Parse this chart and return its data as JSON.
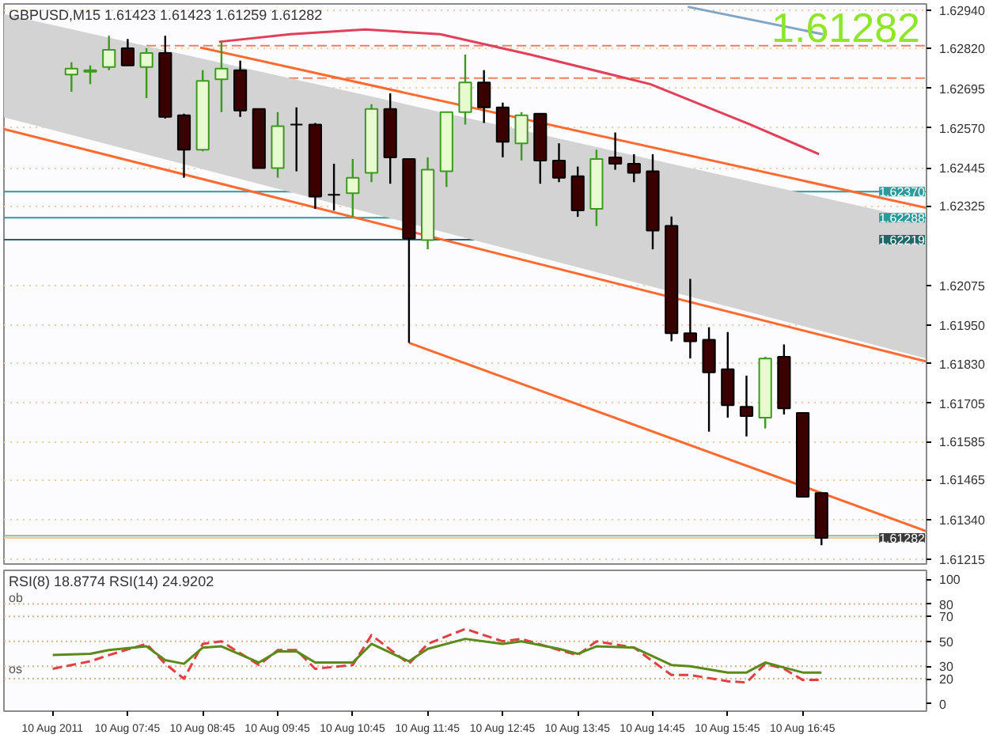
{
  "chart_data": [
    {
      "type": "candlestick",
      "title": "GBPUSD,M15  1.61423 1.61423 1.61259 1.61282",
      "x": [
        "2011-08-10T07:00",
        "2011-08-10T07:15",
        "2011-08-10T07:30",
        "2011-08-10T07:45",
        "2011-08-10T08:00",
        "2011-08-10T08:15",
        "2011-08-10T08:30",
        "2011-08-10T08:45",
        "2011-08-10T09:00",
        "2011-08-10T09:15",
        "2011-08-10T09:30",
        "2011-08-10T09:45",
        "2011-08-10T10:00",
        "2011-08-10T10:15",
        "2011-08-10T10:30",
        "2011-08-10T10:45",
        "2011-08-10T11:00",
        "2011-08-10T11:15",
        "2011-08-10T11:30",
        "2011-08-10T11:45",
        "2011-08-10T12:00",
        "2011-08-10T12:15",
        "2011-08-10T12:30",
        "2011-08-10T12:45",
        "2011-08-10T13:00",
        "2011-08-10T13:15",
        "2011-08-10T13:30",
        "2011-08-10T13:45",
        "2011-08-10T14:00",
        "2011-08-10T14:15",
        "2011-08-10T14:30",
        "2011-08-10T14:45",
        "2011-08-10T15:00",
        "2011-08-10T15:15",
        "2011-08-10T15:30",
        "2011-08-10T15:45",
        "2011-08-10T16:00",
        "2011-08-10T16:15",
        "2011-08-10T16:30",
        "2011-08-10T16:45",
        "2011-08-10T17:00"
      ],
      "ohlc": [
        [
          1.62738,
          1.62777,
          1.62684,
          1.62757
        ],
        [
          1.62747,
          1.62767,
          1.62708,
          1.62752
        ],
        [
          1.62762,
          1.6286,
          1.62752,
          1.62816
        ],
        [
          1.62821,
          1.6285,
          1.62767,
          1.62767
        ],
        [
          1.62762,
          1.62821,
          1.62664,
          1.62806
        ],
        [
          1.62806,
          1.6286,
          1.626,
          1.62605
        ],
        [
          1.6261,
          1.62615,
          1.62414,
          1.62502
        ],
        [
          1.62502,
          1.62752,
          1.62497,
          1.62718
        ],
        [
          1.62723,
          1.6284,
          1.6262,
          1.62757
        ],
        [
          1.62752,
          1.62782,
          1.62605,
          1.62625
        ],
        [
          1.6263,
          1.6263,
          1.62444,
          1.62444
        ],
        [
          1.62444,
          1.6262,
          1.62414,
          1.62576
        ],
        [
          1.62581,
          1.62635,
          1.62434,
          1.62581
        ],
        [
          1.62581,
          1.62586,
          1.62316,
          1.62355
        ],
        [
          1.6236,
          1.62458,
          1.62311,
          1.6236
        ],
        [
          1.62365,
          1.62473,
          1.62291,
          1.62414
        ],
        [
          1.62429,
          1.62645,
          1.624,
          1.6263
        ],
        [
          1.6263,
          1.62679,
          1.62395,
          1.62478
        ],
        [
          1.62473,
          1.62473,
          1.61895,
          1.62223
        ],
        [
          1.62218,
          1.62478,
          1.62189,
          1.62439
        ],
        [
          1.62434,
          1.6262,
          1.62385,
          1.6262
        ],
        [
          1.6262,
          1.62801,
          1.62581,
          1.62713
        ],
        [
          1.62713,
          1.62752,
          1.62586,
          1.62635
        ],
        [
          1.62635,
          1.6265,
          1.62478,
          1.62527
        ],
        [
          1.62522,
          1.6262,
          1.62468,
          1.6261
        ],
        [
          1.62615,
          1.62615,
          1.62395,
          1.62468
        ],
        [
          1.62468,
          1.62522,
          1.624,
          1.62414
        ],
        [
          1.62419,
          1.62449,
          1.62291,
          1.62311
        ],
        [
          1.62316,
          1.62502,
          1.62262,
          1.62473
        ],
        [
          1.62478,
          1.62556,
          1.62439,
          1.62458
        ],
        [
          1.62458,
          1.62488,
          1.624,
          1.62429
        ],
        [
          1.62434,
          1.62488,
          1.62189,
          1.62248
        ],
        [
          1.62263,
          1.62292,
          1.619,
          1.61925
        ],
        [
          1.61925,
          1.62096,
          1.61846,
          1.619
        ],
        [
          1.61905,
          1.61944,
          1.61616,
          1.61802
        ],
        [
          1.61812,
          1.61929,
          1.6166,
          1.61699
        ],
        [
          1.61694,
          1.61792,
          1.61601,
          1.61665
        ],
        [
          1.6166,
          1.61851,
          1.61626,
          1.61846
        ],
        [
          1.61851,
          1.6189,
          1.6167,
          1.61689
        ],
        [
          1.61675,
          1.61675,
          1.61411,
          1.61411
        ],
        [
          1.61423,
          1.61423,
          1.61259,
          1.61282
        ]
      ],
      "colors": [
        "#e8fbd0",
        "#e8fbd0",
        "#e8fbd0",
        "#3a0000",
        "#e8fbd0",
        "#3a0000",
        "#3a0000",
        "#e8fbd0",
        "#e8fbd0",
        "#3a0000",
        "#3a0000",
        "#e8fbd0",
        "#000000",
        "#3a0000",
        "#000000",
        "#e8fbd0",
        "#e8fbd0",
        "#3a0000",
        "#3a0000",
        "#e8fbd0",
        "#e8fbd0",
        "#e8fbd0",
        "#3a0000",
        "#3a0000",
        "#e8fbd0",
        "#3a0000",
        "#3a0000",
        "#3a0000",
        "#e8fbd0",
        "#3a0000",
        "#3a0000",
        "#3a0000",
        "#3a0000",
        "#3a0000",
        "#3a0000",
        "#3a0000",
        "#3a0000",
        "#e8fbd0",
        "#3a0000",
        "#3a0000",
        "#3a0000"
      ],
      "series": [
        {
          "type": "area",
          "color": "#d3d3d3",
          "x": [
            "2011-08-10T06:06",
            "2011-08-10T18:24"
          ],
          "values": [
            null,
            null
          ],
          "upper": [
            1.62928,
            1.62278
          ],
          "lower": [
            1.62604,
            1.61846
          ]
        },
        {
          "type": "line",
          "color": "#e0405a",
          "x": [
            "2011-08-10T08:58",
            "2011-08-10T09:55",
            "2011-08-10T10:55",
            "2011-08-10T11:55",
            "2011-08-10T13:07",
            "2011-08-10T14:43",
            "2011-08-10T16:03",
            "2011-08-10T16:58"
          ],
          "values": [
            1.62841,
            1.62865,
            1.6288,
            1.62865,
            1.62801,
            1.62708,
            1.62581,
            1.62488
          ]
        },
        {
          "type": "line",
          "color": "#ff6a30",
          "x": [
            "2011-08-10T08:43",
            "2011-08-10T18:24"
          ],
          "values": [
            1.62823,
            1.62319
          ]
        },
        {
          "type": "line",
          "color": "#ff6a30",
          "x": [
            "2011-08-10T06:06",
            "2011-08-10T18:24"
          ],
          "values": [
            1.62567,
            1.61836
          ]
        },
        {
          "type": "line",
          "color": "#ff6a30",
          "x": [
            "2011-08-10T11:30",
            "2011-08-10T18:24"
          ],
          "values": [
            1.61895,
            1.61303
          ]
        },
        {
          "type": "line",
          "color": "#7fa6c4",
          "x": [
            "2011-08-10T15:13",
            "2011-08-10T17:01"
          ],
          "values": [
            1.62951,
            1.62865
          ]
        }
      ],
      "ref_lines": [
        {
          "axis": "y",
          "value": 1.62829,
          "label": null,
          "color": "#f08060",
          "line_style": "dashed"
        },
        {
          "axis": "y",
          "value": 1.62727,
          "label": null,
          "color": "#f08060",
          "line_style": "dashed"
        },
        {
          "axis": "y",
          "value": 1.6237,
          "label": "1.62370",
          "color": "#2a9a9a"
        },
        {
          "axis": "y",
          "value": 1.62288,
          "label": "1.62288",
          "color": "#2a9a9a"
        },
        {
          "axis": "y",
          "value": 1.62219,
          "label": "1.62219",
          "color": "#206868"
        },
        {
          "axis": "y",
          "value": 1.61289,
          "label": null,
          "color": "#8cc08c"
        },
        {
          "axis": "y",
          "value": 1.61282,
          "label": "1.61282",
          "color": "#f5c69a"
        }
      ],
      "annotations": [
        "1.61282"
      ],
      "xlim": [
        "2011-08-10T06:06",
        "2011-08-10T18:24"
      ],
      "ylim": [
        1.612,
        1.6296
      ],
      "yticks": [
        {
          "value": 1.6294,
          "label": "1.62940"
        },
        {
          "value": 1.6282,
          "label": "1.62820"
        },
        1.62695,
        {
          "value": 1.6257,
          "label": "1.62570"
        },
        1.62445,
        1.62325,
        1.62075,
        {
          "value": 1.6195,
          "label": "1.61950"
        },
        {
          "value": 1.6183,
          "label": "1.61830"
        },
        1.61705,
        1.61585,
        1.61465,
        {
          "value": 1.6134,
          "label": "1.61340"
        },
        1.61215
      ],
      "tick_labels": "y",
      "grid": "y"
    },
    {
      "type": "line",
      "title": "RSI(8) 18.8774   RSI(14) 24.9202",
      "x": [
        "2011-08-10T06:45",
        "2011-08-10T07:15",
        "2011-08-10T07:30",
        "2011-08-10T08:00",
        "2011-08-10T08:15",
        "2011-08-10T08:30",
        "2011-08-10T08:45",
        "2011-08-10T09:00",
        "2011-08-10T09:30",
        "2011-08-10T09:45",
        "2011-08-10T10:00",
        "2011-08-10T10:15",
        "2011-08-10T10:45",
        "2011-08-10T11:00",
        "2011-08-10T11:30",
        "2011-08-10T11:45",
        "2011-08-10T12:15",
        "2011-08-10T12:45",
        "2011-08-10T13:00",
        "2011-08-10T13:30",
        "2011-08-10T13:45",
        "2011-08-10T14:00",
        "2011-08-10T14:30",
        "2011-08-10T15:00",
        "2011-08-10T15:15",
        "2011-08-10T15:45",
        "2011-08-10T16:00",
        "2011-08-10T16:15",
        "2011-08-10T16:30",
        "2011-08-10T16:45",
        "2011-08-10T17:00"
      ],
      "series": [
        {
          "color": "#e04040",
          "line_style": "dashed",
          "values": [
            28,
            34,
            39,
            48,
            32,
            20,
            48,
            50,
            31,
            43,
            43,
            28,
            31,
            55,
            32,
            48,
            60,
            50,
            52,
            43,
            39,
            50,
            45,
            23,
            23,
            18,
            17,
            32,
            28,
            19,
            19
          ]
        },
        {
          "color": "#5a8a1a",
          "line_style": "solid",
          "values": [
            39,
            40,
            43,
            46,
            35,
            32,
            45,
            46,
            33,
            42,
            42,
            33,
            33,
            48,
            34,
            44,
            52,
            48,
            50,
            44,
            40,
            46,
            45,
            31,
            30,
            25,
            25,
            33,
            29,
            25,
            25
          ]
        }
      ],
      "ref_lines": [
        {
          "axis": "y",
          "value": 80,
          "label": null,
          "color": "#d9b48a",
          "line_style": "dotted"
        },
        {
          "axis": "y",
          "value": 70,
          "label": null,
          "color": "#d9b48a",
          "line_style": "dotted"
        },
        {
          "axis": "y",
          "value": 50,
          "label": null,
          "color": "#d9b48a",
          "line_style": "dotted"
        },
        {
          "axis": "y",
          "value": 30,
          "label": null,
          "color": "#d9b48a",
          "line_style": "dotted"
        },
        {
          "axis": "y",
          "value": 20,
          "label": null,
          "color": "#d9b48a",
          "line_style": "dotted"
        }
      ],
      "annotations": [
        "ob",
        "os"
      ],
      "xlim": [
        "2011-08-10T06:06",
        "2011-08-10T18:24"
      ],
      "ylim": [
        -6,
        107
      ],
      "xticks": [
        {
          "value": "2011-08-10T06:45",
          "label": "10 Aug 2011"
        },
        {
          "value": "2011-08-10T07:45",
          "label": "10 Aug 07:45"
        },
        {
          "value": "2011-08-10T08:45",
          "label": "10 Aug 08:45"
        },
        {
          "value": "2011-08-10T09:45",
          "label": "10 Aug 09:45"
        },
        {
          "value": "2011-08-10T10:45",
          "label": "10 Aug 10:45"
        },
        {
          "value": "2011-08-10T11:45",
          "label": "10 Aug 11:45"
        },
        {
          "value": "2011-08-10T12:45",
          "label": "10 Aug 12:45"
        },
        {
          "value": "2011-08-10T13:45",
          "label": "10 Aug 13:45"
        },
        {
          "value": "2011-08-10T14:45",
          "label": "10 Aug 14:45"
        },
        {
          "value": "2011-08-10T15:45",
          "label": "10 Aug 15:45"
        },
        {
          "value": "2011-08-10T16:45",
          "label": "10 Aug 16:45"
        }
      ],
      "yticks": [
        0,
        20,
        30,
        50,
        70,
        80,
        100
      ]
    }
  ]
}
